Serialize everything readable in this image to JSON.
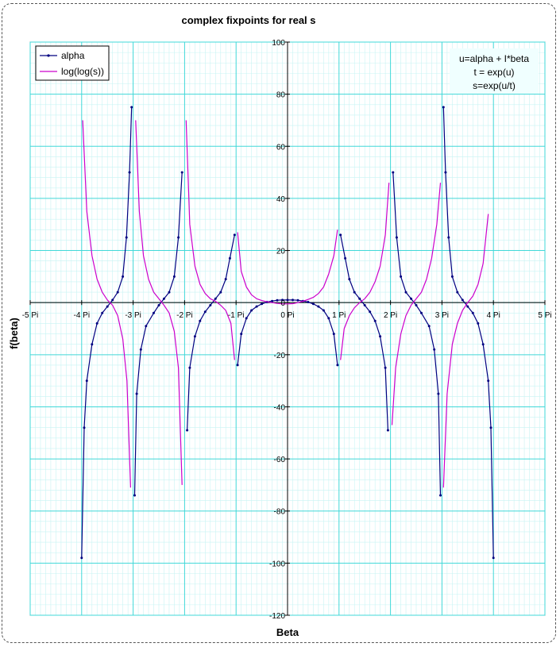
{
  "chart_data": {
    "type": "line",
    "title": "complex fixpoints for real s",
    "xlabel": "Beta",
    "ylabel": "f(beta)",
    "xlim": [
      -5,
      5
    ],
    "ylim": [
      -120,
      100
    ],
    "x_unit": "Pi",
    "x_ticks": [
      "-5 Pi",
      "-4 Pi",
      "-3 Pi",
      "-2 Pi",
      "-1 Pi",
      "0 Pi",
      "1 Pi",
      "2 Pi",
      "3 Pi",
      "4 Pi",
      "5 Pi"
    ],
    "y_ticks": [
      "100",
      "80",
      "60",
      "40",
      "20",
      "0",
      "-20",
      "-40",
      "-60",
      "-80",
      "-100",
      "-120"
    ],
    "grid": true,
    "legend_position": "top-left",
    "annotation": [
      "u=alpha + I*beta",
      "t = exp(u)",
      "s=exp(u/t)"
    ],
    "series": [
      {
        "name": "alpha",
        "color": "#000080",
        "marker": "dot",
        "segments": [
          [
            [
              -4.0,
              -98
            ],
            [
              -3.95,
              -48
            ],
            [
              -3.9,
              -30
            ],
            [
              -3.8,
              -16
            ],
            [
              -3.7,
              -8
            ],
            [
              -3.6,
              -4
            ],
            [
              -3.5,
              -1.5
            ],
            [
              -3.4,
              1
            ],
            [
              -3.3,
              4
            ],
            [
              -3.2,
              10
            ],
            [
              -3.13,
              25
            ],
            [
              -3.07,
              50
            ],
            [
              -3.03,
              75
            ]
          ],
          [
            [
              -2.97,
              -74
            ],
            [
              -2.93,
              -35
            ],
            [
              -2.85,
              -18
            ],
            [
              -2.75,
              -9
            ],
            [
              -2.6,
              -4
            ],
            [
              -2.5,
              -1
            ],
            [
              -2.4,
              1.5
            ],
            [
              -2.3,
              4
            ],
            [
              -2.2,
              10
            ],
            [
              -2.12,
              25
            ],
            [
              -2.05,
              50
            ]
          ],
          [
            [
              -1.95,
              -49
            ],
            [
              -1.9,
              -25
            ],
            [
              -1.8,
              -13
            ],
            [
              -1.7,
              -7
            ],
            [
              -1.6,
              -3.5
            ],
            [
              -1.5,
              -1
            ],
            [
              -1.4,
              1.5
            ],
            [
              -1.3,
              4
            ],
            [
              -1.2,
              9
            ],
            [
              -1.12,
              17
            ],
            [
              -1.03,
              26
            ]
          ],
          [
            [
              -0.97,
              -24
            ],
            [
              -0.9,
              -12
            ],
            [
              -0.8,
              -6
            ],
            [
              -0.7,
              -3
            ],
            [
              -0.6,
              -1.5
            ],
            [
              -0.5,
              -0.5
            ],
            [
              -0.4,
              0.2
            ],
            [
              -0.3,
              0.6
            ],
            [
              -0.2,
              0.9
            ],
            [
              -0.1,
              1
            ],
            [
              0,
              1
            ],
            [
              0.1,
              1
            ],
            [
              0.2,
              0.9
            ],
            [
              0.3,
              0.6
            ],
            [
              0.4,
              0.2
            ],
            [
              0.5,
              -0.5
            ],
            [
              0.6,
              -1.5
            ],
            [
              0.7,
              -3
            ],
            [
              0.8,
              -6
            ],
            [
              0.9,
              -12
            ],
            [
              0.97,
              -24
            ]
          ],
          [
            [
              1.03,
              26
            ],
            [
              1.12,
              17
            ],
            [
              1.2,
              9
            ],
            [
              1.3,
              4
            ],
            [
              1.4,
              1.5
            ],
            [
              1.5,
              -1
            ],
            [
              1.6,
              -3.5
            ],
            [
              1.7,
              -7
            ],
            [
              1.8,
              -13
            ],
            [
              1.9,
              -25
            ],
            [
              1.95,
              -49
            ]
          ],
          [
            [
              2.05,
              50
            ],
            [
              2.12,
              25
            ],
            [
              2.2,
              10
            ],
            [
              2.3,
              4
            ],
            [
              2.4,
              1.5
            ],
            [
              2.5,
              -1
            ],
            [
              2.6,
              -4
            ],
            [
              2.75,
              -9
            ],
            [
              2.85,
              -18
            ],
            [
              2.93,
              -35
            ],
            [
              2.97,
              -74
            ]
          ],
          [
            [
              3.03,
              75
            ],
            [
              3.07,
              50
            ],
            [
              3.13,
              25
            ],
            [
              3.2,
              10
            ],
            [
              3.3,
              4
            ],
            [
              3.4,
              1
            ],
            [
              3.5,
              -1.5
            ],
            [
              3.6,
              -4
            ],
            [
              3.7,
              -8
            ],
            [
              3.8,
              -16
            ],
            [
              3.9,
              -30
            ],
            [
              3.95,
              -48
            ],
            [
              4.0,
              -98
            ]
          ]
        ]
      },
      {
        "name": "log(log(s))",
        "color": "#CC00CC",
        "marker": "none",
        "segments": [
          [
            [
              -3.98,
              70
            ],
            [
              -3.9,
              35
            ],
            [
              -3.8,
              18
            ],
            [
              -3.7,
              9
            ],
            [
              -3.6,
              4
            ],
            [
              -3.5,
              1
            ],
            [
              -3.4,
              -1
            ],
            [
              -3.3,
              -5
            ],
            [
              -3.2,
              -14
            ],
            [
              -3.12,
              -30
            ],
            [
              -3.05,
              -71
            ]
          ],
          [
            [
              -2.95,
              70
            ],
            [
              -2.88,
              35
            ],
            [
              -2.8,
              18
            ],
            [
              -2.7,
              9
            ],
            [
              -2.6,
              4
            ],
            [
              -2.5,
              1.5
            ],
            [
              -2.4,
              -1
            ],
            [
              -2.3,
              -4
            ],
            [
              -2.2,
              -11
            ],
            [
              -2.12,
              -25
            ],
            [
              -2.05,
              -70
            ]
          ],
          [
            [
              -1.97,
              70
            ],
            [
              -1.9,
              30
            ],
            [
              -1.8,
              14
            ],
            [
              -1.7,
              7
            ],
            [
              -1.6,
              3.5
            ],
            [
              -1.5,
              1.5
            ],
            [
              -1.4,
              0.5
            ],
            [
              -1.3,
              -1
            ],
            [
              -1.2,
              -3
            ],
            [
              -1.1,
              -8
            ],
            [
              -1.03,
              -22
            ]
          ],
          [
            [
              -0.97,
              27
            ],
            [
              -0.9,
              12
            ],
            [
              -0.8,
              6
            ],
            [
              -0.7,
              3
            ],
            [
              -0.6,
              1.5
            ],
            [
              -0.5,
              0.8
            ],
            [
              -0.4,
              0.3
            ],
            [
              -0.3,
              0
            ],
            [
              -0.2,
              -0.3
            ],
            [
              -0.1,
              -0.5
            ],
            [
              0,
              -0.5
            ],
            [
              0.1,
              -0.4
            ],
            [
              0.2,
              0
            ],
            [
              0.3,
              0.5
            ],
            [
              0.4,
              1.2
            ],
            [
              0.5,
              2
            ],
            [
              0.6,
              3.5
            ],
            [
              0.7,
              6
            ],
            [
              0.8,
              11
            ],
            [
              0.9,
              18
            ],
            [
              0.97,
              28
            ]
          ],
          [
            [
              1.03,
              -22
            ],
            [
              1.1,
              -10
            ],
            [
              1.2,
              -5
            ],
            [
              1.3,
              -2
            ],
            [
              1.4,
              0
            ],
            [
              1.5,
              1.5
            ],
            [
              1.6,
              4
            ],
            [
              1.7,
              8
            ],
            [
              1.8,
              14
            ],
            [
              1.9,
              26
            ],
            [
              1.97,
              46
            ]
          ],
          [
            [
              2.03,
              -47
            ],
            [
              2.1,
              -25
            ],
            [
              2.2,
              -12
            ],
            [
              2.3,
              -5
            ],
            [
              2.4,
              -1
            ],
            [
              2.5,
              1.5
            ],
            [
              2.6,
              4
            ],
            [
              2.7,
              9
            ],
            [
              2.8,
              17
            ],
            [
              2.9,
              30
            ],
            [
              2.97,
              46
            ]
          ],
          [
            [
              3.03,
              -71
            ],
            [
              3.1,
              -35
            ],
            [
              3.2,
              -16
            ],
            [
              3.3,
              -8
            ],
            [
              3.4,
              -3
            ],
            [
              3.5,
              0
            ],
            [
              3.6,
              2.5
            ],
            [
              3.7,
              7
            ],
            [
              3.8,
              15
            ],
            [
              3.9,
              34
            ]
          ]
        ]
      }
    ]
  }
}
